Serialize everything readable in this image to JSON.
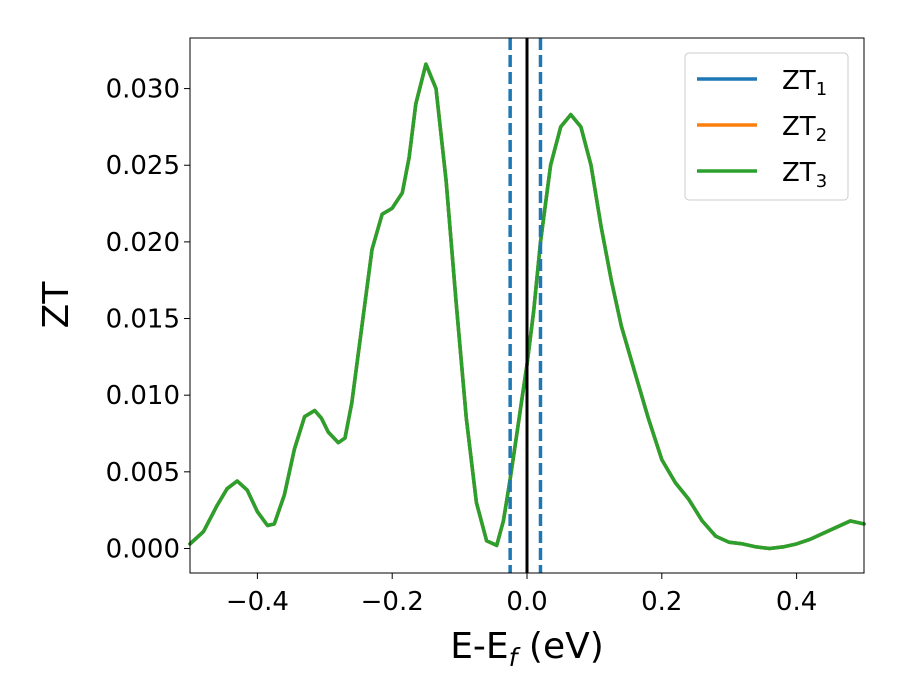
{
  "chart_data": {
    "type": "line",
    "xlabel": "E-E",
    "xlabel_subscript": "f",
    "xlabel_suffix": " (eV)",
    "ylabel": "ZT",
    "xlim": [
      -0.5,
      0.5
    ],
    "ylim": [
      -0.0016,
      0.0333
    ],
    "x_ticks": [
      -0.4,
      -0.2,
      0.0,
      0.2,
      0.4
    ],
    "x_tick_labels": [
      "−0.4",
      "−0.2",
      "0.0",
      "0.2",
      "0.4"
    ],
    "y_ticks": [
      0.0,
      0.005,
      0.01,
      0.015,
      0.02,
      0.025,
      0.03
    ],
    "y_tick_labels": [
      "0.000",
      "0.005",
      "0.010",
      "0.015",
      "0.020",
      "0.025",
      "0.030"
    ],
    "grid": false,
    "legend_position": "top-right",
    "vlines": [
      {
        "x": 0.0,
        "style": "solid",
        "color": "#000000"
      },
      {
        "x": -0.025,
        "style": "dashed",
        "color": "#1f77b4"
      },
      {
        "x": 0.02,
        "style": "dashed",
        "color": "#1f77b4"
      }
    ],
    "series": [
      {
        "name": "ZT",
        "sub": "1",
        "color": "#1f77b4",
        "x": [
          -0.5,
          -0.48,
          -0.46,
          -0.445,
          -0.43,
          -0.415,
          -0.4,
          -0.385,
          -0.375,
          -0.36,
          -0.345,
          -0.33,
          -0.315,
          -0.305,
          -0.295,
          -0.28,
          -0.27,
          -0.26,
          -0.245,
          -0.23,
          -0.215,
          -0.2,
          -0.185,
          -0.175,
          -0.165,
          -0.15,
          -0.135,
          -0.12,
          -0.105,
          -0.09,
          -0.075,
          -0.06,
          -0.045,
          -0.035,
          -0.025,
          -0.015,
          -0.005,
          0.0,
          0.01,
          0.02,
          0.035,
          0.05,
          0.065,
          0.08,
          0.095,
          0.11,
          0.125,
          0.14,
          0.16,
          0.18,
          0.2,
          0.22,
          0.24,
          0.26,
          0.28,
          0.3,
          0.32,
          0.34,
          0.36,
          0.38,
          0.4,
          0.42,
          0.44,
          0.46,
          0.48,
          0.5
        ],
        "y": [
          0.0003,
          0.0011,
          0.0028,
          0.0039,
          0.0044,
          0.0038,
          0.0024,
          0.0015,
          0.0016,
          0.0035,
          0.0065,
          0.0086,
          0.009,
          0.0085,
          0.0076,
          0.0069,
          0.0072,
          0.0095,
          0.0145,
          0.0195,
          0.0218,
          0.0222,
          0.0232,
          0.0255,
          0.029,
          0.0316,
          0.03,
          0.024,
          0.016,
          0.0085,
          0.003,
          0.0005,
          0.0002,
          0.0018,
          0.0045,
          0.0075,
          0.0105,
          0.012,
          0.0155,
          0.02,
          0.025,
          0.0275,
          0.0283,
          0.0275,
          0.025,
          0.021,
          0.0175,
          0.0145,
          0.0115,
          0.0085,
          0.0058,
          0.0043,
          0.0032,
          0.0018,
          0.0008,
          0.0004,
          0.0003,
          0.0001,
          0.0,
          0.0001,
          0.0003,
          0.0006,
          0.001,
          0.0014,
          0.0018,
          0.0016
        ]
      },
      {
        "name": "ZT",
        "sub": "2",
        "color": "#ff7f0e",
        "x": [
          -0.5,
          -0.48,
          -0.46,
          -0.445,
          -0.43,
          -0.415,
          -0.4,
          -0.385,
          -0.375,
          -0.36,
          -0.345,
          -0.33,
          -0.315,
          -0.305,
          -0.295,
          -0.28,
          -0.27,
          -0.26,
          -0.245,
          -0.23,
          -0.215,
          -0.2,
          -0.185,
          -0.175,
          -0.165,
          -0.15,
          -0.135,
          -0.12,
          -0.105,
          -0.09,
          -0.075,
          -0.06,
          -0.045,
          -0.035,
          -0.025,
          -0.015,
          -0.005,
          0.0,
          0.01,
          0.02,
          0.035,
          0.05,
          0.065,
          0.08,
          0.095,
          0.11,
          0.125,
          0.14,
          0.16,
          0.18,
          0.2,
          0.22,
          0.24,
          0.26,
          0.28,
          0.3,
          0.32,
          0.34,
          0.36,
          0.38,
          0.4,
          0.42,
          0.44,
          0.46,
          0.48,
          0.5
        ],
        "y": [
          0.0003,
          0.0011,
          0.0028,
          0.0039,
          0.0044,
          0.0038,
          0.0024,
          0.0015,
          0.0016,
          0.0035,
          0.0065,
          0.0086,
          0.009,
          0.0085,
          0.0076,
          0.0069,
          0.0072,
          0.0095,
          0.0145,
          0.0195,
          0.0218,
          0.0222,
          0.0232,
          0.0255,
          0.029,
          0.0316,
          0.03,
          0.024,
          0.016,
          0.0085,
          0.003,
          0.0005,
          0.0002,
          0.0018,
          0.0045,
          0.0075,
          0.0105,
          0.012,
          0.0155,
          0.02,
          0.025,
          0.0275,
          0.0283,
          0.0275,
          0.025,
          0.021,
          0.0175,
          0.0145,
          0.0115,
          0.0085,
          0.0058,
          0.0043,
          0.0032,
          0.0018,
          0.0008,
          0.0004,
          0.0003,
          0.0001,
          0.0,
          0.0001,
          0.0003,
          0.0006,
          0.001,
          0.0014,
          0.0018,
          0.0016
        ]
      },
      {
        "name": "ZT",
        "sub": "3",
        "color": "#2ca02c",
        "x": [
          -0.5,
          -0.48,
          -0.46,
          -0.445,
          -0.43,
          -0.415,
          -0.4,
          -0.385,
          -0.375,
          -0.36,
          -0.345,
          -0.33,
          -0.315,
          -0.305,
          -0.295,
          -0.28,
          -0.27,
          -0.26,
          -0.245,
          -0.23,
          -0.215,
          -0.2,
          -0.185,
          -0.175,
          -0.165,
          -0.15,
          -0.135,
          -0.12,
          -0.105,
          -0.09,
          -0.075,
          -0.06,
          -0.045,
          -0.035,
          -0.025,
          -0.015,
          -0.005,
          0.0,
          0.01,
          0.02,
          0.035,
          0.05,
          0.065,
          0.08,
          0.095,
          0.11,
          0.125,
          0.14,
          0.16,
          0.18,
          0.2,
          0.22,
          0.24,
          0.26,
          0.28,
          0.3,
          0.32,
          0.34,
          0.36,
          0.38,
          0.4,
          0.42,
          0.44,
          0.46,
          0.48,
          0.5
        ],
        "y": [
          0.0003,
          0.0011,
          0.0028,
          0.0039,
          0.0044,
          0.0038,
          0.0024,
          0.0015,
          0.0016,
          0.0035,
          0.0065,
          0.0086,
          0.009,
          0.0085,
          0.0076,
          0.0069,
          0.0072,
          0.0095,
          0.0145,
          0.0195,
          0.0218,
          0.0222,
          0.0232,
          0.0255,
          0.029,
          0.0316,
          0.03,
          0.024,
          0.016,
          0.0085,
          0.003,
          0.0005,
          0.0002,
          0.0018,
          0.0045,
          0.0075,
          0.0105,
          0.012,
          0.0155,
          0.02,
          0.025,
          0.0275,
          0.0283,
          0.0275,
          0.025,
          0.021,
          0.0175,
          0.0145,
          0.0115,
          0.0085,
          0.0058,
          0.0043,
          0.0032,
          0.0018,
          0.0008,
          0.0004,
          0.0003,
          0.0001,
          0.0,
          0.0001,
          0.0003,
          0.0006,
          0.001,
          0.0014,
          0.0018,
          0.0016
        ]
      }
    ]
  }
}
